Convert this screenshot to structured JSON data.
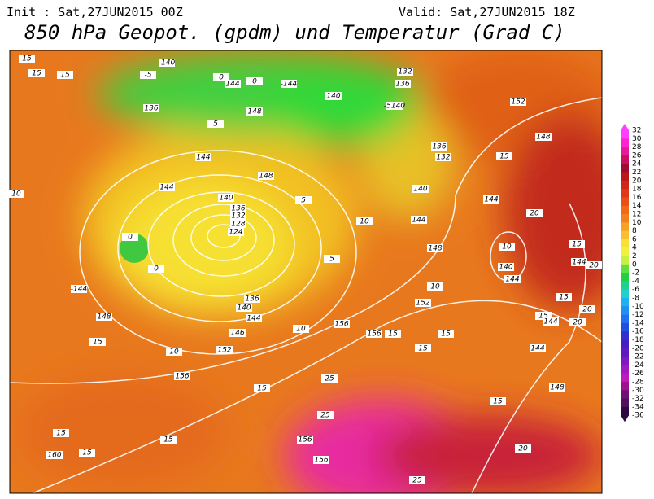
{
  "header": {
    "init": "Init : Sat,27JUN2015 00Z",
    "valid": "Valid: Sat,27JUN2015 18Z",
    "title": "850 hPa Geopot. (gpdm) und Temperatur (Grad C)"
  },
  "colorbar": {
    "ticks": [
      32,
      30,
      28,
      26,
      24,
      22,
      20,
      18,
      16,
      14,
      12,
      10,
      8,
      6,
      4,
      2,
      0,
      -2,
      -4,
      -6,
      -8,
      -10,
      -12,
      -14,
      -16,
      -18,
      -20,
      -22,
      -24,
      -26,
      -28,
      -30,
      -32,
      -34,
      -36
    ]
  },
  "map": {
    "labels": [
      "15",
      "15",
      "15",
      "-5",
      "-140",
      "0",
      "144",
      "0",
      "-144",
      "136",
      "148",
      "5",
      "144",
      "148",
      "144",
      "140",
      "136",
      "132",
      "128",
      "124",
      "0",
      "0",
      "-144",
      "148",
      "136",
      "140",
      "144",
      "146",
      "152",
      "10",
      "15",
      "156",
      "10",
      "156",
      "156",
      "152",
      "148",
      "140",
      "144",
      "136",
      "132",
      "132",
      "136",
      "140",
      "-5140",
      "152",
      "148",
      "15",
      "144",
      "20",
      "10",
      "140",
      "144",
      "15",
      "144",
      "20",
      "15",
      "15",
      "144",
      "20",
      "20",
      "144",
      "148",
      "15",
      "20",
      "25",
      "25",
      "156",
      "156",
      "25",
      "15",
      "15",
      "15",
      "15",
      "160",
      "10",
      "10",
      "15",
      "15",
      "15",
      "5",
      "5",
      "10"
    ]
  }
}
